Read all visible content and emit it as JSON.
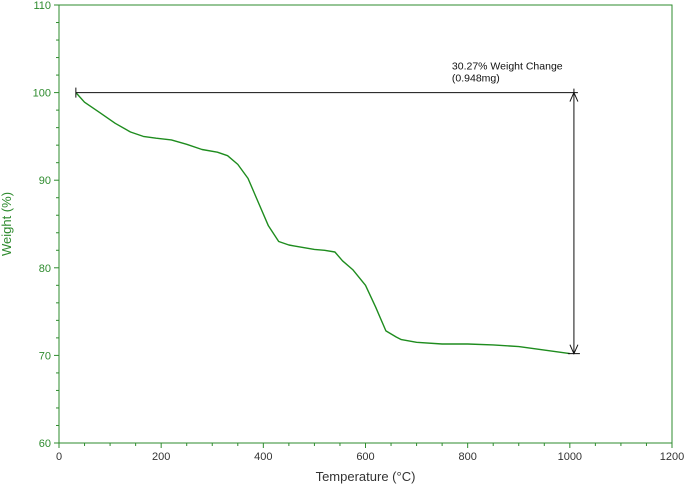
{
  "chart_data": {
    "type": "line",
    "xlabel": "Temperature (°C)",
    "ylabel": "Weight (%)",
    "xlim": [
      0,
      1200
    ],
    "ylim": [
      60,
      110
    ],
    "x_ticks": [
      0,
      200,
      400,
      600,
      800,
      1000,
      1200
    ],
    "y_ticks": [
      60,
      70,
      80,
      90,
      100,
      110
    ],
    "x_tick_labels": [
      "0",
      "200",
      "400",
      "600",
      "800",
      "1000",
      "1200"
    ],
    "y_tick_labels": [
      "60",
      "70",
      "80",
      "90",
      "100",
      "110"
    ],
    "grid": false,
    "series": [
      {
        "color": "#1e8c1e",
        "x": [
          33,
          50,
          80,
          110,
          140,
          165,
          190,
          220,
          250,
          280,
          310,
          330,
          350,
          370,
          390,
          410,
          430,
          450,
          460,
          480,
          500,
          520,
          540,
          555,
          575,
          600,
          620,
          640,
          660,
          670,
          700,
          750,
          800,
          850,
          900,
          950,
          1000
        ],
        "y": [
          100.0,
          98.9,
          97.7,
          96.5,
          95.5,
          95.0,
          94.8,
          94.6,
          94.1,
          93.5,
          93.2,
          92.8,
          91.8,
          90.2,
          87.5,
          84.8,
          83.0,
          82.6,
          82.5,
          82.3,
          82.1,
          82.0,
          81.8,
          80.8,
          79.8,
          78.0,
          75.5,
          72.8,
          72.1,
          71.8,
          71.5,
          71.3,
          71.3,
          71.2,
          71.0,
          70.6,
          70.2
        ]
      }
    ],
    "annotations": {
      "weight_change_line1": "30.27% Weight Change",
      "weight_change_line2": "(0.948mg)",
      "start_x": 33,
      "end_x": 1008,
      "top_y": 100,
      "bottom_y": 70.2
    },
    "colors": {
      "frame": "#2e8b2e",
      "curve": "#1e8c1e",
      "annotation": "#111111"
    }
  }
}
